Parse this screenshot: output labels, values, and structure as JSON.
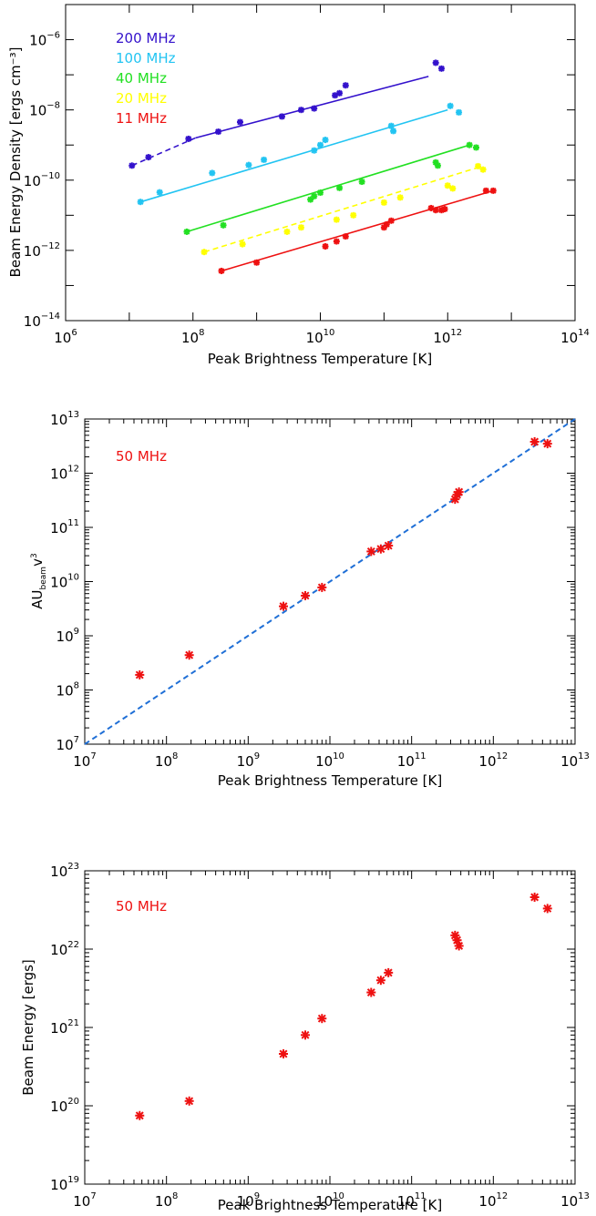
{
  "charts": [
    {
      "type": "scatter",
      "xlabel": "Peak Brightness Temperature [K]",
      "ylabel": "Beam Energy Density [ergs cm⁻³]",
      "xlog": true,
      "ylog": true,
      "xlim": [
        1000000.0,
        100000000000000.0
      ],
      "ylim": [
        1e-14,
        1e-05
      ],
      "x_tick_exponents": [
        6,
        8,
        10,
        12,
        14
      ],
      "y_tick_exponents": [
        -14,
        -12,
        -10,
        -8,
        -6
      ],
      "series": [
        {
          "name": "200 MHz",
          "color": "#3311cc",
          "line": [
            [
              11000000.0,
              2.6e-10
            ],
            [
              110000000.0,
              1.6e-09
            ],
            [
              500000000000.0,
              9e-08
            ]
          ],
          "x": [
            11000000.0,
            20000000.0,
            85000000.0,
            250000000.0,
            550000000.0,
            2500000000.0,
            5000000000.0,
            8000000000.0,
            17000000000.0,
            20000000000.0,
            25000000000.0,
            650000000000.0,
            800000000000.0
          ],
          "y": [
            2.6e-10,
            4.5e-10,
            1.5e-09,
            2.4e-09,
            4.5e-09,
            6.5e-09,
            1e-08,
            1.1e-08,
            2.6e-08,
            3e-08,
            5e-08,
            2.2e-07,
            1.5e-07
          ]
        },
        {
          "name": "100 MHz",
          "color": "#22c4f2",
          "line": [
            [
              15000000.0,
              2.4e-11
            ],
            [
              1000000000000.0,
              1e-08
            ]
          ],
          "x": [
            15000000.0,
            30000000.0,
            200000000.0,
            750000000.0,
            1300000000.0,
            8000000000.0,
            10000000000.0,
            12000000000.0,
            130000000000.0,
            140000000000.0,
            1100000000000.0,
            1500000000000.0
          ],
          "y": [
            2.4e-11,
            4.5e-11,
            1.6e-10,
            2.7e-10,
            3.8e-10,
            7e-10,
            1e-09,
            1.4e-09,
            3.5e-09,
            2.5e-09,
            1.3e-08,
            8.5e-09
          ]
        },
        {
          "name": "40 MHz",
          "color": "#22e022",
          "line": [
            [
              80000000.0,
              3.4e-12
            ],
            [
              2200000000000.0,
              1e-09
            ]
          ],
          "x": [
            80000000.0,
            300000000.0,
            7000000000.0,
            8000000000.0,
            10000000000.0,
            20000000000.0,
            45000000000.0,
            650000000000.0,
            700000000000.0,
            2200000000000.0,
            2800000000000.0
          ],
          "y": [
            3.4e-12,
            5.2e-12,
            2.8e-11,
            3.5e-11,
            4.4e-11,
            6e-11,
            9e-11,
            3.2e-10,
            2.6e-10,
            1e-09,
            8.5e-10
          ]
        },
        {
          "name": "20 MHz",
          "color": "#ffff00",
          "line": [
            [
              150000000.0,
              9e-13
            ],
            [
              3500000000000.0,
              2.5e-10
            ]
          ],
          "x": [
            150000000.0,
            600000000.0,
            3000000000.0,
            5000000000.0,
            18000000000.0,
            33000000000.0,
            100000000000.0,
            180000000000.0,
            1000000000000.0,
            1200000000000.0,
            3000000000000.0,
            3600000000000.0
          ],
          "y": [
            9e-13,
            1.5e-12,
            3.4e-12,
            4.5e-12,
            7.5e-12,
            1e-11,
            2.3e-11,
            3.2e-11,
            7e-11,
            5.8e-11,
            2.5e-10,
            2e-10
          ]
        },
        {
          "name": "11 MHz",
          "color": "#ee1111",
          "line": [
            [
              280000000.0,
              2.6e-13
            ],
            [
              5200000000000.0,
              5e-11
            ]
          ],
          "x": [
            280000000.0,
            1000000000.0,
            12000000000.0,
            18000000000.0,
            25000000000.0,
            100000000000.0,
            110000000000.0,
            130000000000.0,
            550000000000.0,
            650000000000.0,
            800000000000.0,
            900000000000.0,
            4000000000000.0,
            5200000000000.0
          ],
          "y": [
            2.6e-13,
            4.5e-13,
            1.3e-12,
            1.8e-12,
            2.5e-12,
            4.5e-12,
            5.5e-12,
            7e-12,
            1.6e-11,
            1.4e-11,
            1.4e-11,
            1.5e-11,
            5e-11,
            5e-11
          ]
        }
      ]
    },
    {
      "type": "scatter",
      "xlabel": "Peak Brightness Temperature [K]",
      "ylabel": "AU_beam v^3",
      "ylabel_main": "AU",
      "ylabel_sub": "beam",
      "ylabel_v": "v",
      "ylabel_sup": "3",
      "xlog": true,
      "ylog": true,
      "xlim": [
        10000000.0,
        10000000000000.0
      ],
      "ylim": [
        10000000.0,
        10000000000000.0
      ],
      "x_tick_exponents": [
        7,
        8,
        9,
        10,
        11,
        12,
        13
      ],
      "y_tick_exponents": [
        7,
        8,
        9,
        10,
        11,
        12,
        13
      ],
      "annotation": "50 MHz",
      "fit_line": {
        "color": "#1f6fd6",
        "from": [
          10000000.0,
          10000000.0
        ],
        "to": [
          10000000000000.0,
          10000000000000.0
        ]
      },
      "series": [
        {
          "color": "#ee1111",
          "x": [
            47000000.0,
            190000000.0,
            2700000000.0,
            5000000000.0,
            8000000000.0,
            32000000000.0,
            42000000000.0,
            52000000000.0,
            340000000000.0,
            360000000000.0,
            380000000000.0,
            3200000000000.0,
            4600000000000.0
          ],
          "y": [
            190000000.0,
            440000000.0,
            3500000000.0,
            5500000000.0,
            7800000000.0,
            36000000000.0,
            40000000000.0,
            46000000000.0,
            330000000000.0,
            400000000000.0,
            450000000000.0,
            3800000000000.0,
            3500000000000.0
          ]
        }
      ]
    },
    {
      "type": "scatter",
      "xlabel": "Peak Brightness Temperature [K]",
      "ylabel": "Beam Energy [ergs]",
      "xlog": true,
      "ylog": true,
      "xlim": [
        10000000.0,
        10000000000000.0
      ],
      "ylim": [
        1e+19,
        1e+23
      ],
      "x_tick_exponents": [
        7,
        8,
        9,
        10,
        11,
        12,
        13
      ],
      "y_tick_exponents": [
        19,
        20,
        21,
        22,
        23
      ],
      "annotation": "50 MHz",
      "series": [
        {
          "color": "#ee1111",
          "x": [
            47000000.0,
            190000000.0,
            2700000000.0,
            5000000000.0,
            8000000000.0,
            32000000000.0,
            42000000000.0,
            52000000000.0,
            340000000000.0,
            360000000000.0,
            380000000000.0,
            3200000000000.0,
            4600000000000.0
          ],
          "y": [
            7.5e+19,
            1.15e+20,
            4.6e+20,
            8e+20,
            1.3e+21,
            2.8e+21,
            4e+21,
            5e+21,
            1.5e+22,
            1.3e+22,
            1.1e+22,
            4.6e+22,
            3.3e+22
          ]
        }
      ]
    }
  ]
}
